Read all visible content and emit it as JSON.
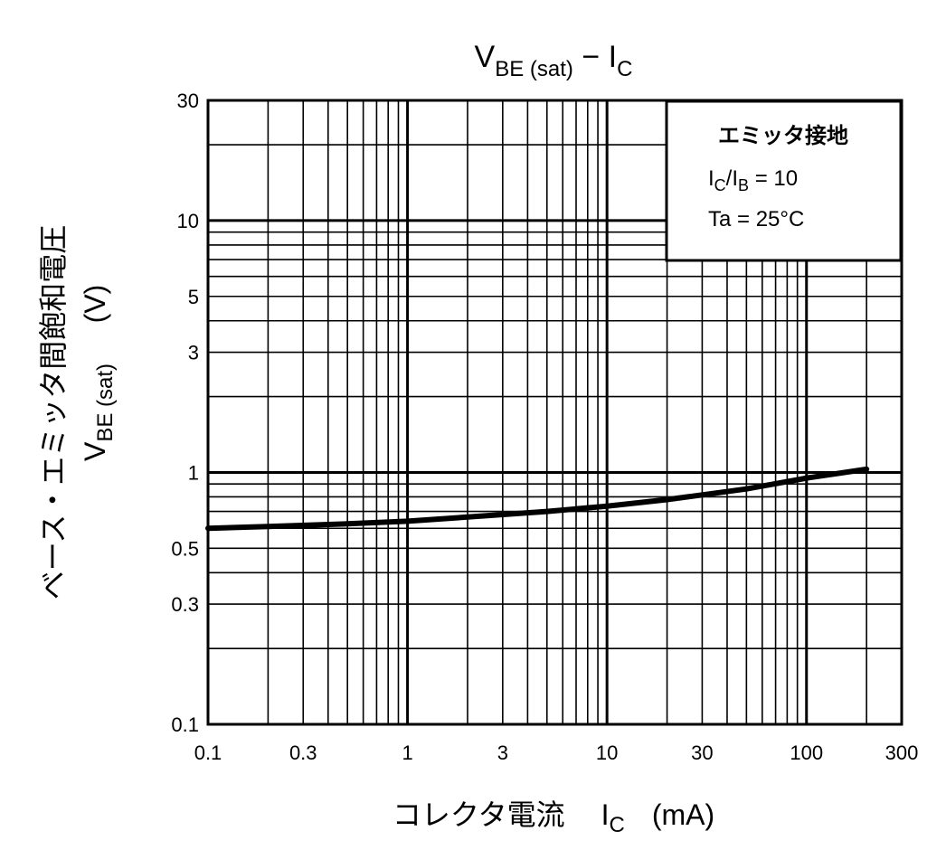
{
  "chart_data": {
    "type": "line",
    "title": {
      "main": "V",
      "sub": "BE (sat)",
      "sep": " − I",
      "sub2": "C"
    },
    "xlabel": {
      "text": "コレクタ電流",
      "symbol": "I",
      "symbol_sub": "C",
      "unit": "(mA)"
    },
    "ylabel": {
      "line1": "ベース・エミッタ間飽和電圧",
      "line2_main": "V",
      "line2_sub": "BE (sat)",
      "line2_unit": "(V)",
      "unit": "(V)"
    },
    "x_scale": "log",
    "y_scale": "log",
    "xlim": [
      0.1,
      300
    ],
    "ylim": [
      0.1,
      30
    ],
    "grid": true,
    "x_ticks": [
      {
        "value": 0.1,
        "label": "0.1"
      },
      {
        "value": 0.3,
        "label": "0.3"
      },
      {
        "value": 1,
        "label": "1"
      },
      {
        "value": 3,
        "label": "3"
      },
      {
        "value": 10,
        "label": "10"
      },
      {
        "value": 30,
        "label": "30"
      },
      {
        "value": 100,
        "label": "100"
      },
      {
        "value": 300,
        "label": "300"
      }
    ],
    "y_ticks": [
      {
        "value": 0.1,
        "label": "0.1"
      },
      {
        "value": 0.3,
        "label": "0.3"
      },
      {
        "value": 0.5,
        "label": "0.5"
      },
      {
        "value": 1,
        "label": "1"
      },
      {
        "value": 3,
        "label": "3"
      },
      {
        "value": 5,
        "label": "5"
      },
      {
        "value": 10,
        "label": "10"
      },
      {
        "value": 30,
        "label": "30"
      }
    ],
    "annotation": {
      "placement": "top-right",
      "line1": "エミッタ接地",
      "line2": {
        "a": "I",
        "a_sub": "C",
        "b": "/I",
        "b_sub": "B",
        "c": " = 10"
      },
      "line3": "Ta = 25°C"
    },
    "series": [
      {
        "x": [
          0.1,
          0.2,
          0.5,
          1,
          2,
          5,
          10,
          20,
          50,
          100,
          200
        ],
        "y": [
          0.6,
          0.61,
          0.625,
          0.64,
          0.665,
          0.7,
          0.735,
          0.78,
          0.86,
          0.95,
          1.03
        ]
      }
    ]
  }
}
